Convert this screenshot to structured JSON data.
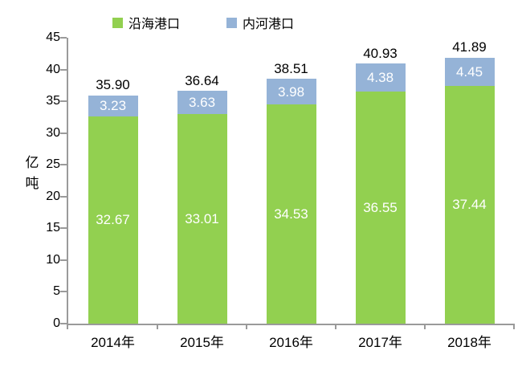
{
  "chart_data": {
    "type": "bar",
    "stacked": true,
    "title": "",
    "categories": [
      "2014年",
      "2015年",
      "2016年",
      "2017年",
      "2018年"
    ],
    "series": [
      {
        "name": "沿海港口",
        "color": "#92D050",
        "values": [
          32.67,
          33.01,
          34.53,
          36.55,
          37.44
        ]
      },
      {
        "name": "内河港口",
        "color": "#95B3D7",
        "values": [
          3.23,
          3.63,
          3.98,
          4.38,
          4.45
        ]
      }
    ],
    "totals": [
      35.9,
      36.64,
      38.51,
      40.93,
      41.89
    ],
    "xlabel": "",
    "ylabel": "亿吨",
    "ylim": [
      0,
      45
    ],
    "yticks": [
      0,
      5,
      10,
      15,
      20,
      25,
      30,
      35,
      40,
      45
    ],
    "grid": false,
    "legend_position": "top",
    "value_label_color": "#ffffff",
    "total_label_color": "#000000",
    "axis_color": "#9a9a9a"
  }
}
